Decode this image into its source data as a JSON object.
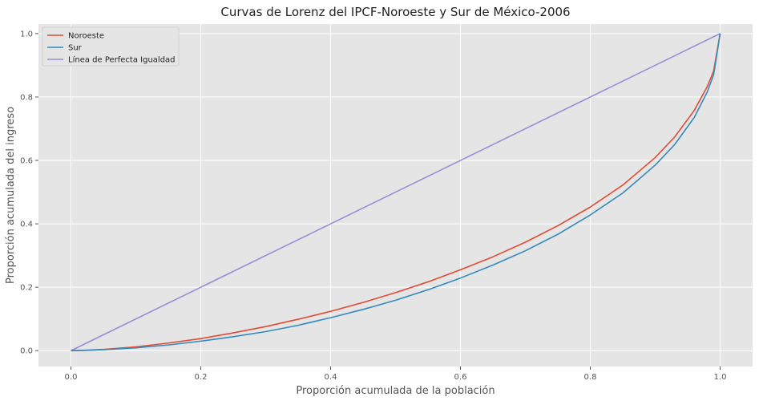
{
  "chart_data": {
    "type": "line",
    "title": "Curvas de Lorenz del IPCF-Noroeste y Sur de México-2006",
    "xlabel": "Proporción acumulada de la población",
    "ylabel": "Proporción acumulada del ingreso",
    "xlim": [
      -0.05,
      1.05
    ],
    "ylim": [
      -0.05,
      1.03
    ],
    "xticks": [
      0.0,
      0.2,
      0.4,
      0.6,
      0.8,
      1.0
    ],
    "xtick_labels": [
      "0.0",
      "0.2",
      "0.4",
      "0.6",
      "0.8",
      "1.0"
    ],
    "yticks": [
      0.0,
      0.2,
      0.4,
      0.6,
      0.8,
      1.0
    ],
    "ytick_labels": [
      "0.0",
      "0.2",
      "0.4",
      "0.6",
      "0.8",
      "1.0"
    ],
    "grid": true,
    "legend_position": "top-left",
    "series": [
      {
        "name": "Noroeste",
        "color": "#E24A33",
        "x": [
          0,
          0.02,
          0.05,
          0.1,
          0.15,
          0.2,
          0.25,
          0.3,
          0.35,
          0.4,
          0.45,
          0.5,
          0.55,
          0.6,
          0.65,
          0.7,
          0.75,
          0.8,
          0.85,
          0.9,
          0.93,
          0.96,
          0.98,
          0.99,
          1.0
        ],
        "y": [
          0,
          0.001,
          0.004,
          0.012,
          0.024,
          0.038,
          0.056,
          0.076,
          0.099,
          0.124,
          0.152,
          0.183,
          0.217,
          0.255,
          0.296,
          0.342,
          0.394,
          0.453,
          0.522,
          0.609,
          0.674,
          0.757,
          0.832,
          0.882,
          1.0
        ]
      },
      {
        "name": "Sur",
        "color": "#348ABD",
        "x": [
          0,
          0.02,
          0.05,
          0.1,
          0.15,
          0.2,
          0.25,
          0.3,
          0.35,
          0.4,
          0.45,
          0.5,
          0.55,
          0.6,
          0.65,
          0.7,
          0.75,
          0.8,
          0.85,
          0.9,
          0.93,
          0.96,
          0.98,
          0.99,
          1.0
        ],
        "y": [
          0,
          0.0008,
          0.003,
          0.009,
          0.018,
          0.03,
          0.044,
          0.06,
          0.08,
          0.104,
          0.13,
          0.159,
          0.192,
          0.229,
          0.27,
          0.315,
          0.367,
          0.428,
          0.497,
          0.585,
          0.65,
          0.735,
          0.815,
          0.87,
          1.0
        ]
      },
      {
        "name": "Línea de Perfecta Igualdad",
        "color": "#988ED5",
        "x": [
          0,
          1
        ],
        "y": [
          0,
          1
        ]
      }
    ]
  }
}
